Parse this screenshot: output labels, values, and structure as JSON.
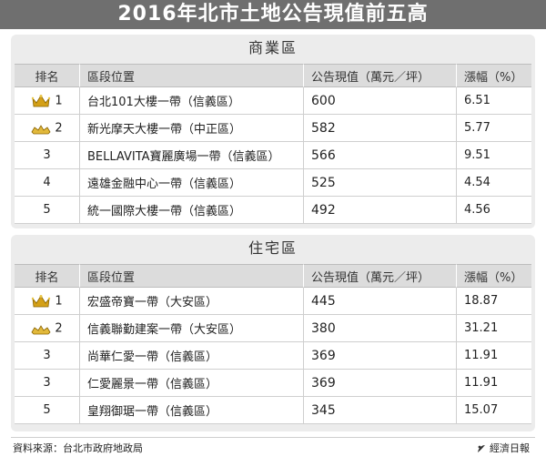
{
  "title": "2016年北市土地公告現值前五高",
  "headers": {
    "rank": "排名",
    "location": "區段位置",
    "value": "公告現值（萬元／坪）",
    "increase": "漲幅（%）"
  },
  "commercial": {
    "section_title": "商業區",
    "rows": [
      {
        "rank": "1",
        "location": "台北101大樓一帶（信義區）",
        "value": "600",
        "increase": "6.51",
        "crown": "gold-crown-icon"
      },
      {
        "rank": "2",
        "location": "新光摩天大樓一帶（中正區）",
        "value": "582",
        "increase": "5.77",
        "crown": "silver-crown-icon"
      },
      {
        "rank": "3",
        "location": "BELLAVITA寶麗廣場一帶（信義區）",
        "value": "566",
        "increase": "9.51"
      },
      {
        "rank": "4",
        "location": "遠雄金融中心一帶（信義區）",
        "value": "525",
        "increase": "4.54"
      },
      {
        "rank": "5",
        "location": "統一國際大樓一帶（信義區）",
        "value": "492",
        "increase": "4.56"
      }
    ]
  },
  "residential": {
    "section_title": "住宅區",
    "rows": [
      {
        "rank": "1",
        "location": "宏盛帝寶一帶（大安區）",
        "value": "445",
        "increase": "18.87",
        "crown": "gold-crown-icon"
      },
      {
        "rank": "2",
        "location": "信義聯勤建案一帶（大安區）",
        "value": "380",
        "increase": "31.21",
        "crown": "silver-crown-icon"
      },
      {
        "rank": "3",
        "location": "尚華仁愛一帶（信義區）",
        "value": "369",
        "increase": "11.91"
      },
      {
        "rank": "3",
        "location": "仁愛麗景一帶（信義區）",
        "value": "369",
        "increase": "11.91"
      },
      {
        "rank": "5",
        "location": "皇翔御琚一帶（信義區）",
        "value": "345",
        "increase": "15.07"
      }
    ]
  },
  "footer": {
    "source": "資料來源：台北市政府地政局",
    "brand": "經濟日報"
  },
  "colors": {
    "banner": "#6f6f6f",
    "panel": "#ececec",
    "header_row": "#dcdcdc",
    "crown_gold": "#d4a017"
  }
}
